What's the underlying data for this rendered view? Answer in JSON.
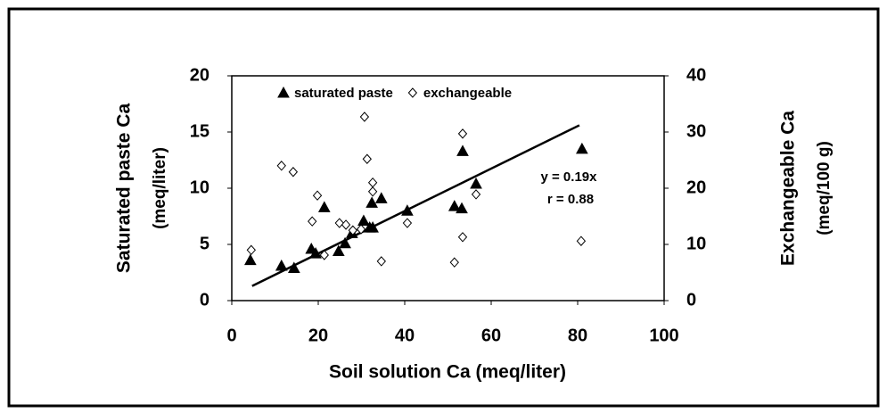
{
  "chart_data": {
    "type": "scatter",
    "xlabel": "Soil solution Ca (meq/liter)",
    "ylabel": [
      "Saturated paste Ca",
      "(meq/liter)"
    ],
    "y2label": [
      "Exchangeable Ca",
      "(meq/100 g)"
    ],
    "xlim": [
      0,
      100
    ],
    "xticks": [
      0,
      20,
      40,
      60,
      80,
      100
    ],
    "ylim": [
      0,
      20
    ],
    "yticks": [
      0,
      5,
      10,
      15,
      20
    ],
    "y2lim": [
      0,
      40
    ],
    "y2ticks": [
      0,
      10,
      20,
      30,
      40
    ],
    "legend": "top",
    "series": [
      {
        "name": "saturated paste",
        "color": "#000000",
        "marker": "triangle",
        "x": [
          4.3,
          11.5,
          14.4,
          18.4,
          19.4,
          21.4,
          24.7,
          26.2,
          27.8,
          30.5,
          31.9,
          32.6,
          32.4,
          34.6,
          40.6,
          51.5,
          53.2,
          53.4,
          56.5,
          81
        ],
        "values": [
          3.6,
          3.1,
          2.9,
          4.6,
          4.2,
          8.3,
          4.4,
          5.1,
          6.0,
          7.1,
          6.5,
          6.5,
          8.7,
          9.1,
          8.0,
          8.4,
          8.2,
          13.3,
          10.4,
          13.5
        ]
      },
      {
        "name": "exchangeable",
        "color": "#ffffff",
        "marker": "diamond",
        "axis": "y2",
        "x": [
          4.5,
          11.5,
          14.2,
          18.6,
          19.8,
          21.4,
          24.9,
          26.4,
          28.0,
          29.9,
          30.7,
          31.3,
          32.6,
          32.6,
          34.6,
          40.6,
          51.5,
          53.4,
          53.4,
          56.5,
          80.8
        ],
        "values": [
          9.0,
          24.0,
          22.9,
          14.1,
          18.7,
          8.1,
          13.8,
          13.5,
          12.5,
          12.7,
          32.7,
          25.2,
          21.0,
          19.4,
          7.0,
          13.8,
          6.8,
          29.7,
          11.3,
          18.9,
          10.6
        ]
      }
    ],
    "trendline": {
      "x": [
        4.7,
        80.4
      ],
      "values": [
        1.3,
        15.6
      ]
    },
    "annotations": [
      "y = 0.19x",
      "r = 0.88"
    ]
  }
}
